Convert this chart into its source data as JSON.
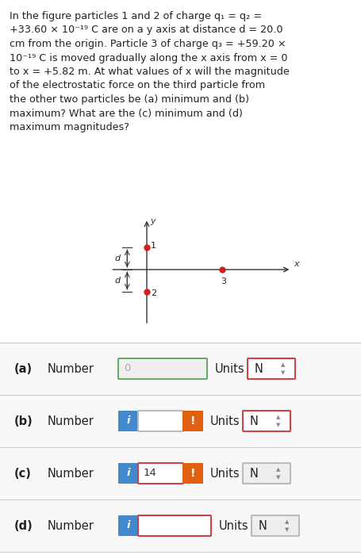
{
  "title_lines": [
    "In the figure particles 1 and 2 of charge q₁ = q₂ =",
    "+33.60 × 10⁻¹⁹ C are on a y axis at distance d = 20.0",
    "cm from the origin. Particle 3 of charge q₃ = +59.20 ×",
    "10⁻¹⁹ C is moved gradually along the x axis from x = 0",
    "to x = +5.82 m. At what values of x will the magnitude",
    "of the electrostatic force on the third particle from",
    "the other two particles be (a) minimum and (b)",
    "maximum? What are the (c) minimum and (d)",
    "maximum magnitudes?"
  ],
  "rows": [
    {
      "label": "(a)",
      "value": "0",
      "units": "N",
      "show_i": false,
      "show_warning": false,
      "input_border": "#6aaa6a",
      "input_bg": "#efefef",
      "units_border": "#cc4444",
      "units_bg": "#ffffff",
      "value_color": "#aaaaaa"
    },
    {
      "label": "(b)",
      "value": "",
      "units": "N",
      "show_i": true,
      "show_warning": true,
      "input_border": "#bbbbbb",
      "input_bg": "#ffffff",
      "units_border": "#cc4444",
      "units_bg": "#ffffff",
      "value_color": "#333333"
    },
    {
      "label": "(c)",
      "value": "14",
      "units": "N",
      "show_i": true,
      "show_warning": true,
      "input_border": "#cc4444",
      "input_bg": "#ffffff",
      "units_border": "#bbbbbb",
      "units_bg": "#eeeeee",
      "value_color": "#333333"
    },
    {
      "label": "(d)",
      "value": "",
      "units": "N",
      "show_i": true,
      "show_warning": false,
      "input_border": "#cc4444",
      "input_bg": "#ffffff",
      "units_border": "#bbbbbb",
      "units_bg": "#eeeeee",
      "value_color": "#333333"
    }
  ],
  "bg_color": "#ffffff",
  "text_color": "#222222",
  "separator_color": "#cccccc",
  "blue_btn_color": "#4488cc",
  "orange_btn_color": "#e06010",
  "particle_color": "#cc2222",
  "axis_color": "#333333",
  "title_fontsize": 9.2,
  "row_fontsize": 10.5
}
